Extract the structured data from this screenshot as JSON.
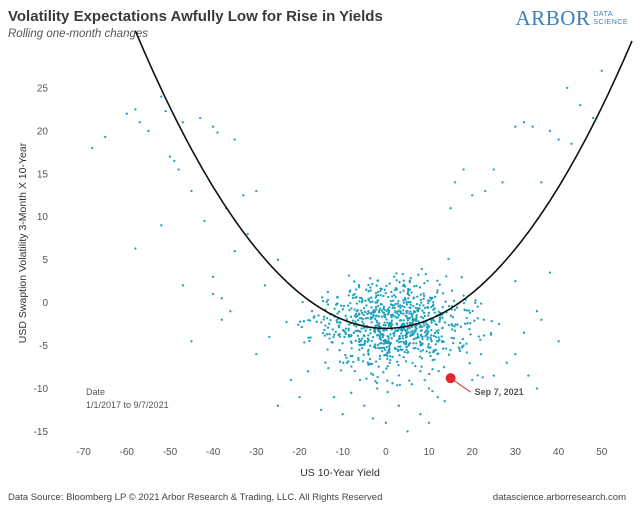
{
  "header": {
    "title": "Volatility Expectations Awfully Low for Rise in Yields",
    "subtitle": "Rolling one-month changes"
  },
  "logo": {
    "brand": "ARBOR",
    "sub_line1": "DATA",
    "sub_line2": "SCIENCE"
  },
  "footer": {
    "source": "Data Source: Bloomberg LP © 2021 Arbor Research & Trading, LLC. All Rights Reserved",
    "website": "datascience.arborresearch.com"
  },
  "chart_data": {
    "type": "scatter",
    "title": "Volatility Expectations Awfully Low for Rise in Yields",
    "subtitle": "Rolling one-month changes",
    "xlabel": "US 10-Year Yield",
    "ylabel": "USD Swaption Volatility 3-Month X 10-Year",
    "xlim": [
      -75,
      57
    ],
    "ylim": [
      -16,
      30
    ],
    "x_ticks": [
      -70,
      -60,
      -50,
      -40,
      -30,
      -20,
      -10,
      0,
      10,
      20,
      30,
      40,
      50
    ],
    "y_ticks": [
      -15,
      -10,
      -5,
      0,
      5,
      10,
      15,
      20,
      25
    ],
    "grid": false,
    "point_color": "#1ba1bf",
    "highlight_color": "#e02828",
    "fit_color": "#111111",
    "fit_curve": {
      "type": "quadratic",
      "vertex_x": 0,
      "vertex_y": -3,
      "a": 0.0103
    },
    "date_note": {
      "label": "Date",
      "range": "1/1/2017 to 9/7/2021"
    },
    "highlight": {
      "x": 15,
      "y": -8.8,
      "label": "Sep 7, 2021"
    },
    "points_listed": [
      [
        -68,
        18
      ],
      [
        -65,
        19.3
      ],
      [
        -60,
        22
      ],
      [
        -58,
        22.5
      ],
      [
        -57,
        21
      ],
      [
        -55,
        20
      ],
      [
        -52,
        24
      ],
      [
        -51,
        22.3
      ],
      [
        -50,
        17
      ],
      [
        -49,
        16.5
      ],
      [
        -48,
        15.5
      ],
      [
        -47,
        21
      ],
      [
        -45,
        13
      ],
      [
        -43,
        21.5
      ],
      [
        -40,
        20.5
      ],
      [
        -39,
        19.8
      ],
      [
        -37,
        11
      ],
      [
        -35,
        19
      ],
      [
        -33,
        12.5
      ],
      [
        -30,
        13
      ],
      [
        -58,
        6.3
      ],
      [
        -52,
        9
      ],
      [
        -47,
        2
      ],
      [
        -45,
        -4.5
      ],
      [
        -42,
        9.5
      ],
      [
        -40,
        3
      ],
      [
        -38,
        0.5
      ],
      [
        -36,
        -1
      ],
      [
        -35,
        6
      ],
      [
        -32,
        8
      ],
      [
        -38,
        -2
      ],
      [
        -40,
        1
      ],
      [
        50,
        27
      ],
      [
        48,
        21.5
      ],
      [
        45,
        23
      ],
      [
        43,
        18.5
      ],
      [
        42,
        25
      ],
      [
        40,
        19
      ],
      [
        38,
        20
      ],
      [
        36,
        14
      ],
      [
        34,
        20.5
      ],
      [
        32,
        21
      ],
      [
        30,
        20.5
      ],
      [
        27,
        14
      ],
      [
        25,
        15.5
      ],
      [
        23,
        13
      ],
      [
        20,
        12.5
      ],
      [
        18,
        15.5
      ],
      [
        16,
        14
      ],
      [
        15,
        11
      ],
      [
        40,
        -4.5
      ],
      [
        38,
        3.5
      ],
      [
        36,
        -2
      ],
      [
        35,
        -10
      ],
      [
        33,
        -8.5
      ],
      [
        30,
        -6
      ],
      [
        28,
        -7
      ],
      [
        35,
        -1
      ],
      [
        32,
        -3.5
      ],
      [
        30,
        2.5
      ],
      [
        -25,
        -12
      ],
      [
        -22,
        -9
      ],
      [
        -20,
        -11
      ],
      [
        -18,
        -8
      ],
      [
        -15,
        -12.5
      ],
      [
        -12,
        -11
      ],
      [
        -10,
        -13
      ],
      [
        -8,
        -10.5
      ],
      [
        -5,
        -12
      ],
      [
        -3,
        -13.5
      ],
      [
        0,
        -14
      ],
      [
        3,
        -12
      ],
      [
        5,
        -15
      ],
      [
        8,
        -13
      ],
      [
        10,
        -14
      ],
      [
        12,
        -11
      ],
      [
        -30,
        -6
      ],
      [
        -27,
        -4
      ],
      [
        -28,
        2
      ],
      [
        -25,
        5
      ],
      [
        25,
        -8.5
      ],
      [
        22,
        -6
      ],
      [
        20,
        -9
      ],
      [
        18,
        -5
      ],
      [
        10,
        -10
      ],
      [
        8,
        -8
      ],
      [
        6,
        -9.5
      ],
      [
        -2,
        -10
      ],
      [
        -6,
        -9
      ],
      [
        -14,
        -7
      ]
    ]
  }
}
